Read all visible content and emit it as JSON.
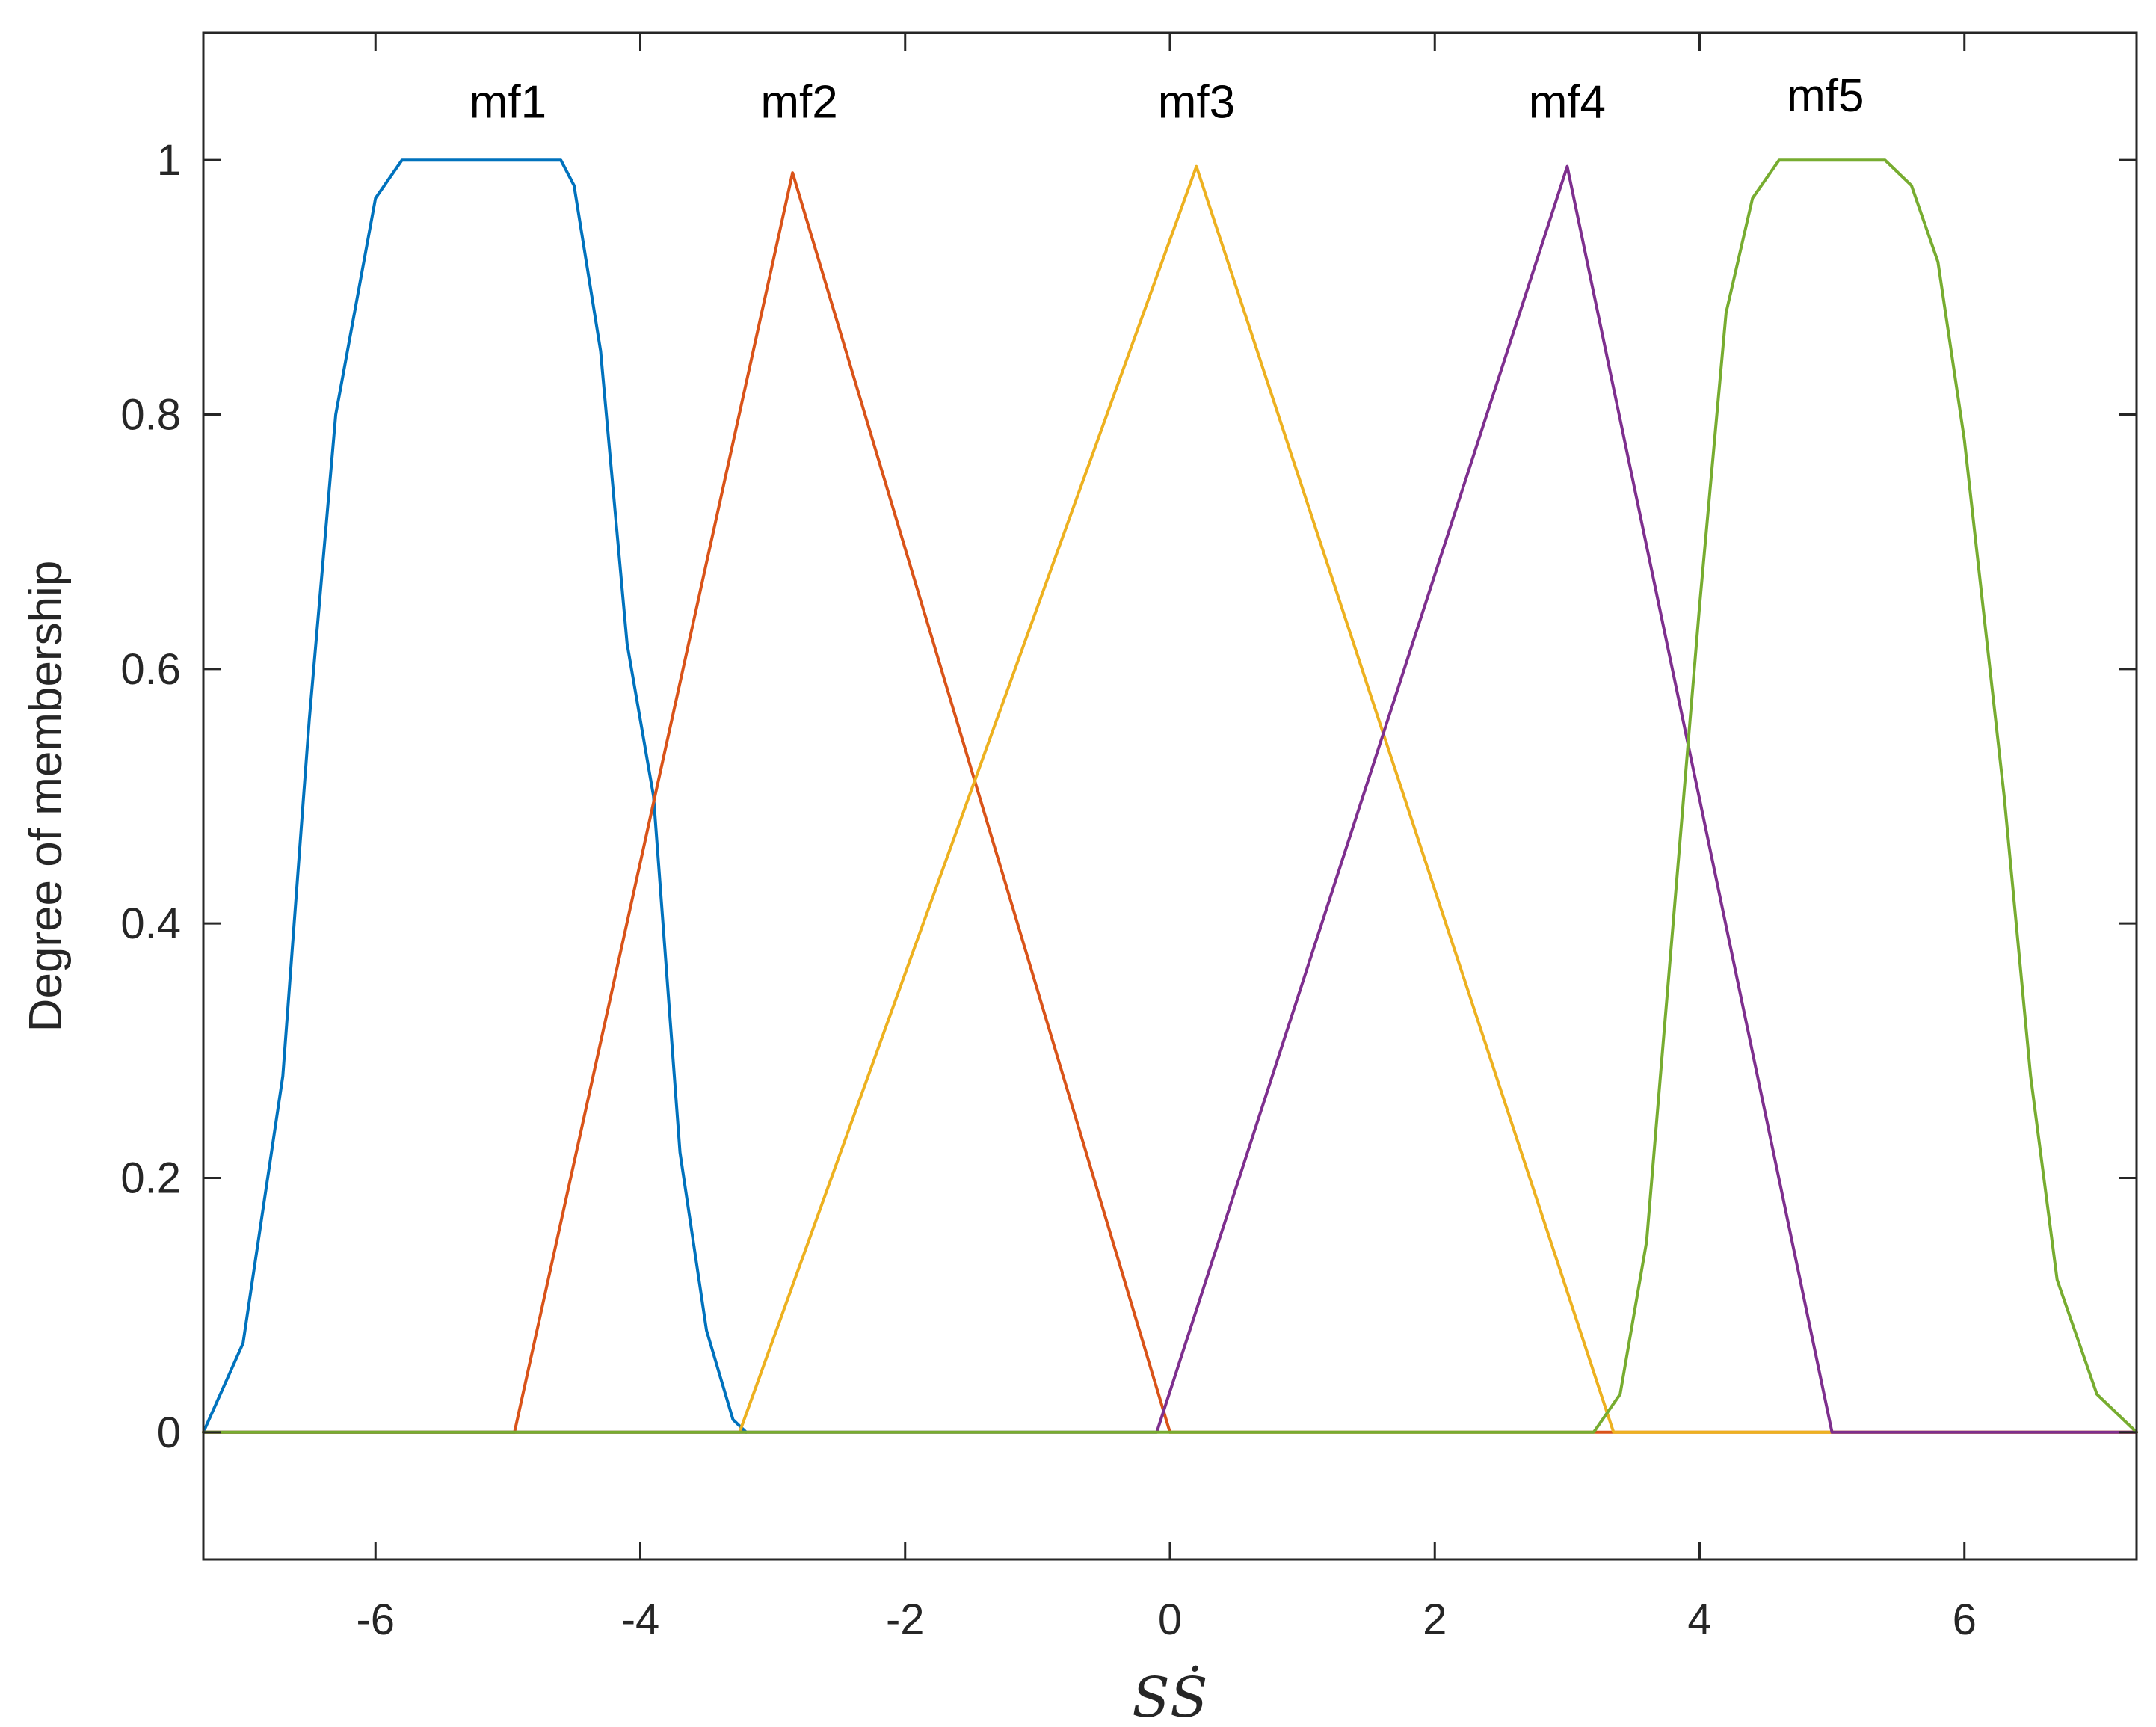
{
  "chart_data": {
    "type": "line",
    "title": "",
    "xlabel": "SṠ",
    "ylabel": "Degree of membership",
    "xlim": [
      -7.3,
      7.3
    ],
    "ylim": [
      -0.1,
      1.1
    ],
    "x_ticks": [
      -6,
      -4,
      -2,
      0,
      2,
      4,
      6
    ],
    "x_tick_labels": [
      "-6",
      "-4",
      "-2",
      "0",
      "2",
      "4",
      "6"
    ],
    "y_ticks": [
      0,
      0.2,
      0.4,
      0.6,
      0.8,
      1
    ],
    "y_tick_labels": [
      "0",
      "0.2",
      "0.4",
      "0.6",
      "0.8",
      "1"
    ],
    "grid": false,
    "legend": "none",
    "series": [
      {
        "name": "mf1",
        "color": "#0072BD",
        "x": [
          -7.3,
          -7.0,
          -6.7,
          -6.5,
          -6.3,
          -6.0,
          -5.8,
          -5.6,
          -5.4,
          -5.0,
          -4.6,
          -4.5,
          -4.3,
          -4.1,
          -3.9,
          -3.7,
          -3.5,
          -3.3,
          -3.2
        ],
        "y": [
          0,
          0.07,
          0.28,
          0.56,
          0.8,
          0.97,
          1.0,
          1.0,
          1.0,
          1.0,
          1.0,
          0.98,
          0.85,
          0.62,
          0.5,
          0.22,
          0.08,
          0.01,
          0
        ]
      },
      {
        "name": "mf2",
        "color": "#D95319",
        "x": [
          -7.3,
          -4.95,
          -2.85,
          0.0,
          7.3
        ],
        "y": [
          0,
          0,
          0.99,
          0,
          0
        ]
      },
      {
        "name": "mf3",
        "color": "#EDB120",
        "x": [
          -7.3,
          -3.25,
          0.2,
          3.35,
          7.3
        ],
        "y": [
          0,
          0,
          0.995,
          0,
          0
        ]
      },
      {
        "name": "mf4",
        "color": "#7E2F8E",
        "x": [
          -7.3,
          -0.1,
          3.0,
          5.0,
          7.3
        ],
        "y": [
          0,
          0,
          0.995,
          0,
          0
        ]
      },
      {
        "name": "mf5",
        "color": "#77AC30",
        "x": [
          -7.3,
          3.2,
          3.4,
          3.6,
          3.8,
          4.0,
          4.2,
          4.4,
          4.6,
          5.0,
          5.4,
          5.6,
          5.8,
          6.0,
          6.3,
          6.5,
          6.7,
          7.0,
          7.3
        ],
        "y": [
          0,
          0,
          0.03,
          0.15,
          0.4,
          0.65,
          0.88,
          0.97,
          1.0,
          1.0,
          1.0,
          0.98,
          0.92,
          0.78,
          0.5,
          0.28,
          0.12,
          0.03,
          0
        ]
      }
    ],
    "annotations": [
      {
        "text": "mf1",
        "x": -5.0,
        "y": 1.045
      },
      {
        "text": "mf2",
        "x": -2.8,
        "y": 1.045
      },
      {
        "text": "mf3",
        "x": 0.2,
        "y": 1.045
      },
      {
        "text": "mf4",
        "x": 3.0,
        "y": 1.045
      },
      {
        "text": "mf5",
        "x": 4.95,
        "y": 1.05
      }
    ]
  }
}
